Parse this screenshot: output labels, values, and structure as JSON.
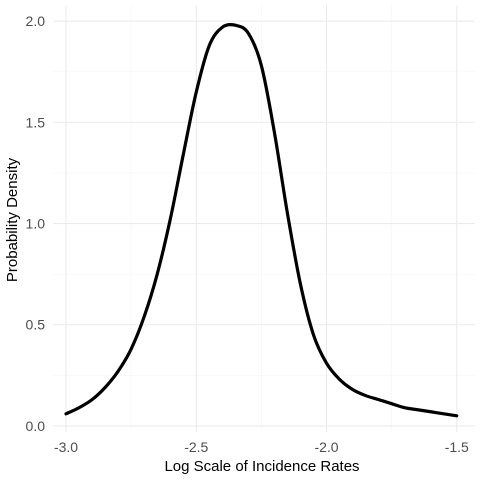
{
  "chart_data": {
    "type": "line",
    "title": "",
    "xlabel": "Log Scale of Incidence Rates",
    "ylabel": "Probability Density",
    "xlim": [
      -3.05,
      -1.43
    ],
    "ylim": [
      -0.03,
      2.08
    ],
    "x_ticks": [
      -3.0,
      -2.5,
      -2.0,
      -1.5
    ],
    "x_tick_labels": [
      "-3.0",
      "-2.5",
      "-2.0",
      "-1.5"
    ],
    "y_ticks": [
      0.0,
      0.5,
      1.0,
      1.5,
      2.0
    ],
    "y_tick_labels": [
      "0.0",
      "0.5",
      "1.0",
      "1.5",
      "2.0"
    ],
    "grid": true,
    "legend": "none",
    "series": [
      {
        "color": "#000000",
        "x": [
          -3.0,
          -2.95,
          -2.9,
          -2.85,
          -2.8,
          -2.75,
          -2.7,
          -2.65,
          -2.6,
          -2.55,
          -2.5,
          -2.45,
          -2.4,
          -2.35,
          -2.3,
          -2.25,
          -2.2,
          -2.15,
          -2.1,
          -2.05,
          -2.0,
          -1.95,
          -1.9,
          -1.85,
          -1.8,
          -1.75,
          -1.7,
          -1.65,
          -1.6,
          -1.55,
          -1.5
        ],
        "y": [
          0.06,
          0.09,
          0.13,
          0.19,
          0.27,
          0.38,
          0.54,
          0.75,
          1.02,
          1.34,
          1.65,
          1.88,
          1.97,
          1.98,
          1.94,
          1.78,
          1.45,
          1.05,
          0.7,
          0.45,
          0.31,
          0.23,
          0.18,
          0.15,
          0.13,
          0.11,
          0.09,
          0.08,
          0.07,
          0.06,
          0.05
        ]
      }
    ]
  }
}
